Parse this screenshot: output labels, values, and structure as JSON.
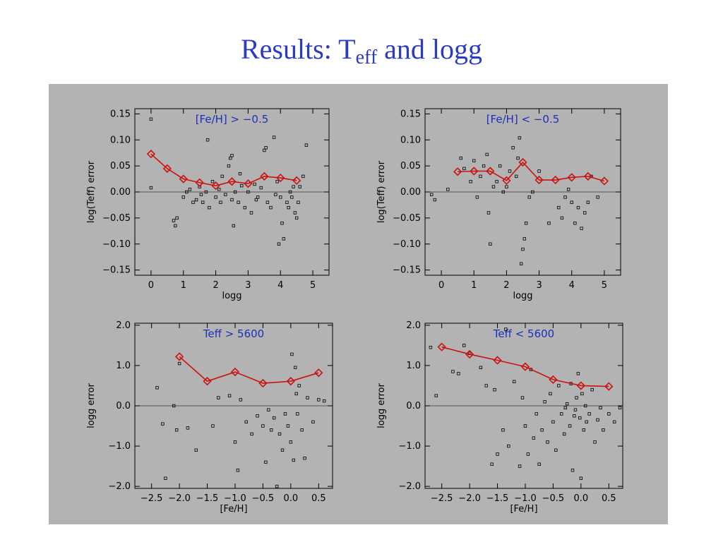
{
  "slide": {
    "title_main": "Results: T",
    "title_sub": "eff",
    "title_tail": " and logg"
  },
  "colors": {
    "title": "#2b3bc4",
    "panel_background": "#b3b3b3",
    "trend_line": "#cc1111",
    "points": "#000000",
    "panel_label": "#1f2fb8"
  },
  "chart_data": [
    {
      "id": "top-left",
      "type": "scatter",
      "title": "[Fe/H] > −0.5",
      "xlabel": "logg",
      "ylabel": "log(Teff) error",
      "xlim": [
        -0.5,
        5.5
      ],
      "ylim": [
        -0.16,
        0.16
      ],
      "xticks": [
        0,
        1,
        2,
        3,
        4,
        5
      ],
      "xtick_labels": [
        "0",
        "1",
        "2",
        "3",
        "4",
        "5"
      ],
      "yticks": [
        0.15,
        0.1,
        0.05,
        0.0,
        -0.05,
        -0.1,
        -0.15
      ],
      "ytick_labels": [
        "0.15",
        "0.10",
        "0.05",
        "0.00",
        "−0.05",
        "−0.10",
        "−0.15"
      ],
      "zero_line": 0,
      "trend": {
        "x": [
          0,
          0.5,
          1,
          1.5,
          2,
          2.5,
          3,
          3.5,
          4,
          4.5
        ],
        "y": [
          0.073,
          0.045,
          0.025,
          0.018,
          0.012,
          0.02,
          0.016,
          0.03,
          0.027,
          0.022
        ]
      },
      "points": [
        [
          0,
          0.14
        ],
        [
          0,
          0.008
        ],
        [
          0.7,
          -0.055
        ],
        [
          0.75,
          -0.065
        ],
        [
          0.8,
          -0.05
        ],
        [
          1.0,
          -0.01
        ],
        [
          1.1,
          0.0
        ],
        [
          1.2,
          0.005
        ],
        [
          1.3,
          -0.02
        ],
        [
          1.4,
          -0.015
        ],
        [
          1.5,
          0.01
        ],
        [
          1.6,
          -0.02
        ],
        [
          1.7,
          0.0
        ],
        [
          1.75,
          0.1
        ],
        [
          1.8,
          -0.03
        ],
        [
          1.9,
          0.02
        ],
        [
          2.0,
          -0.01
        ],
        [
          2.1,
          0.005
        ],
        [
          2.2,
          0.03
        ],
        [
          2.3,
          -0.005
        ],
        [
          2.4,
          0.05
        ],
        [
          2.45,
          0.065
        ],
        [
          2.5,
          0.07
        ],
        [
          2.5,
          -0.015
        ],
        [
          2.55,
          -0.065
        ],
        [
          2.6,
          0.0
        ],
        [
          2.7,
          -0.02
        ],
        [
          2.8,
          0.012
        ],
        [
          2.9,
          -0.03
        ],
        [
          3.0,
          0.0
        ],
        [
          3.1,
          -0.04
        ],
        [
          3.2,
          0.015
        ],
        [
          3.3,
          -0.01
        ],
        [
          3.4,
          0.008
        ],
        [
          3.5,
          0.08
        ],
        [
          3.55,
          0.085
        ],
        [
          3.6,
          -0.02
        ],
        [
          3.7,
          -0.03
        ],
        [
          3.8,
          0.105
        ],
        [
          3.85,
          -0.005
        ],
        [
          3.9,
          0.02
        ],
        [
          4.0,
          -0.01
        ],
        [
          4.1,
          -0.09
        ],
        [
          4.2,
          -0.02
        ],
        [
          4.25,
          -0.03
        ],
        [
          4.3,
          0.0
        ],
        [
          4.35,
          -0.01
        ],
        [
          4.4,
          0.01
        ],
        [
          4.45,
          -0.04
        ],
        [
          4.5,
          -0.05
        ],
        [
          4.55,
          -0.02
        ],
        [
          4.6,
          0.01
        ],
        [
          4.7,
          0.03
        ],
        [
          4.8,
          0.09
        ],
        [
          3.95,
          -0.1
        ],
        [
          4.05,
          -0.06
        ],
        [
          2.15,
          -0.02
        ],
        [
          1.55,
          -0.005
        ],
        [
          3.25,
          -0.015
        ],
        [
          2.75,
          0.035
        ]
      ]
    },
    {
      "id": "top-right",
      "type": "scatter",
      "title": "[Fe/H] < −0.5",
      "xlabel": "logg",
      "ylabel": "log(Teff) error",
      "xlim": [
        -0.5,
        5.5
      ],
      "ylim": [
        -0.16,
        0.16
      ],
      "xticks": [
        0,
        1,
        2,
        3,
        4,
        5
      ],
      "xtick_labels": [
        "0",
        "1",
        "2",
        "3",
        "4",
        "5"
      ],
      "yticks": [
        0.15,
        0.1,
        0.05,
        0.0,
        -0.05,
        -0.1,
        -0.15
      ],
      "ytick_labels": [
        "0.15",
        "0.10",
        "0.05",
        "0.00",
        "−0.05",
        "−0.10",
        "−0.15"
      ],
      "zero_line": 0,
      "trend": {
        "x": [
          0.5,
          1,
          1.5,
          2,
          2.5,
          3,
          3.5,
          4,
          4.5,
          5
        ],
        "y": [
          0.039,
          0.04,
          0.04,
          0.022,
          0.057,
          0.023,
          0.023,
          0.028,
          0.03,
          0.021
        ]
      },
      "points": [
        [
          -0.3,
          -0.005
        ],
        [
          -0.2,
          -0.015
        ],
        [
          0.2,
          0.005
        ],
        [
          0.6,
          0.065
        ],
        [
          0.7,
          0.045
        ],
        [
          0.9,
          0.02
        ],
        [
          1.0,
          0.06
        ],
        [
          1.1,
          -0.01
        ],
        [
          1.2,
          0.03
        ],
        [
          1.3,
          0.05
        ],
        [
          1.4,
          0.072
        ],
        [
          1.45,
          -0.04
        ],
        [
          1.5,
          -0.1
        ],
        [
          1.6,
          0.01
        ],
        [
          1.7,
          0.02
        ],
        [
          1.8,
          0.05
        ],
        [
          1.9,
          0.0
        ],
        [
          2.0,
          0.01
        ],
        [
          2.1,
          0.04
        ],
        [
          2.2,
          0.085
        ],
        [
          2.3,
          0.03
        ],
        [
          2.35,
          0.065
        ],
        [
          2.4,
          0.104
        ],
        [
          2.45,
          -0.138
        ],
        [
          2.5,
          -0.11
        ],
        [
          2.55,
          -0.09
        ],
        [
          2.6,
          -0.06
        ],
        [
          2.7,
          -0.01
        ],
        [
          2.8,
          0.0
        ],
        [
          3.0,
          0.04
        ],
        [
          3.3,
          -0.06
        ],
        [
          3.6,
          -0.03
        ],
        [
          3.7,
          -0.05
        ],
        [
          3.8,
          -0.01
        ],
        [
          3.9,
          0.005
        ],
        [
          4.0,
          -0.02
        ],
        [
          4.1,
          -0.06
        ],
        [
          4.2,
          -0.03
        ],
        [
          4.3,
          -0.07
        ],
        [
          4.4,
          -0.04
        ],
        [
          4.5,
          -0.02
        ],
        [
          4.6,
          0.03
        ],
        [
          4.8,
          -0.01
        ]
      ]
    },
    {
      "id": "bottom-left",
      "type": "scatter",
      "title": "Teff > 5600",
      "xlabel": "[Fe/H]",
      "ylabel": "logg error",
      "xlim": [
        -2.8,
        0.75
      ],
      "ylim": [
        -2.05,
        2.05
      ],
      "xticks": [
        -2.5,
        -2.0,
        -1.5,
        -1.0,
        -0.5,
        0.0,
        0.5
      ],
      "xtick_labels": [
        "−2.5",
        "−2.0",
        "−1.5",
        "−1.0",
        "−0.5",
        "0.0",
        "0.5"
      ],
      "yticks": [
        2.0,
        1.0,
        0.0,
        -1.0,
        -2.0
      ],
      "ytick_labels": [
        "2.0",
        "1.0",
        "0.0",
        "−1.0",
        "−2.0"
      ],
      "zero_line": 0,
      "trend": {
        "x": [
          -2.0,
          -1.5,
          -1.0,
          -0.5,
          0.0,
          0.5
        ],
        "y": [
          1.22,
          0.61,
          0.84,
          0.56,
          0.61,
          0.82
        ]
      },
      "points": [
        [
          -2.4,
          0.45
        ],
        [
          -2.3,
          -0.45
        ],
        [
          -2.25,
          -1.8
        ],
        [
          -2.1,
          0.0
        ],
        [
          -2.05,
          -0.6
        ],
        [
          -2.0,
          1.05
        ],
        [
          -1.85,
          -0.55
        ],
        [
          -1.7,
          -1.1
        ],
        [
          -1.4,
          -0.5
        ],
        [
          -1.3,
          0.2
        ],
        [
          -1.1,
          0.25
        ],
        [
          -1.0,
          -0.9
        ],
        [
          -0.95,
          -1.6
        ],
        [
          -0.9,
          0.15
        ],
        [
          -0.8,
          -0.4
        ],
        [
          -0.7,
          -0.7
        ],
        [
          -0.6,
          -0.25
        ],
        [
          -0.5,
          -0.5
        ],
        [
          -0.45,
          -1.4
        ],
        [
          -0.4,
          -0.1
        ],
        [
          -0.35,
          -0.6
        ],
        [
          -0.3,
          -0.3
        ],
        [
          -0.2,
          -0.7
        ],
        [
          -0.15,
          -1.1
        ],
        [
          -0.1,
          -0.2
        ],
        [
          -0.05,
          -0.5
        ],
        [
          0.0,
          -0.9
        ],
        [
          0.02,
          1.28
        ],
        [
          0.05,
          -1.35
        ],
        [
          0.08,
          0.95
        ],
        [
          0.1,
          0.3
        ],
        [
          0.12,
          -0.2
        ],
        [
          0.15,
          0.5
        ],
        [
          0.2,
          -0.6
        ],
        [
          0.25,
          -1.3
        ],
        [
          0.3,
          0.2
        ],
        [
          0.4,
          -0.4
        ],
        [
          0.5,
          0.15
        ],
        [
          0.6,
          0.12
        ],
        [
          -0.25,
          -2.0
        ]
      ]
    },
    {
      "id": "bottom-right",
      "type": "scatter",
      "title": "Teff < 5600",
      "xlabel": "[Fe/H]",
      "ylabel": "logg error",
      "xlim": [
        -2.8,
        0.75
      ],
      "ylim": [
        -2.05,
        2.05
      ],
      "xticks": [
        -2.5,
        -2.0,
        -1.5,
        -1.0,
        -0.5,
        0.0,
        0.5
      ],
      "xtick_labels": [
        "−2.5",
        "−2.0",
        "−1.5",
        "−1.0",
        "−0.5",
        "0.0",
        "0.5"
      ],
      "yticks": [
        2.0,
        1.0,
        0.0,
        -1.0,
        -2.0
      ],
      "ytick_labels": [
        "2.0",
        "1.0",
        "0.0",
        "−1.0",
        "−2.0"
      ],
      "zero_line": 0,
      "trend": {
        "x": [
          -2.5,
          -2.0,
          -1.5,
          -1.0,
          -0.5,
          0.0,
          0.5
        ],
        "y": [
          1.46,
          1.28,
          1.13,
          0.97,
          0.65,
          0.5,
          0.48
        ]
      },
      "points": [
        [
          -2.7,
          1.45
        ],
        [
          -2.6,
          0.25
        ],
        [
          -2.3,
          0.85
        ],
        [
          -2.2,
          0.8
        ],
        [
          -2.1,
          1.5
        ],
        [
          -2.0,
          1.3
        ],
        [
          -1.8,
          0.95
        ],
        [
          -1.7,
          0.5
        ],
        [
          -1.6,
          -1.45
        ],
        [
          -1.55,
          0.4
        ],
        [
          -1.5,
          -1.2
        ],
        [
          -1.4,
          -0.6
        ],
        [
          -1.35,
          1.9
        ],
        [
          -1.3,
          -1.0
        ],
        [
          -1.2,
          0.6
        ],
        [
          -1.1,
          -1.5
        ],
        [
          -1.05,
          0.2
        ],
        [
          -1.0,
          -0.5
        ],
        [
          -0.95,
          -1.2
        ],
        [
          -0.9,
          0.9
        ],
        [
          -0.85,
          -0.8
        ],
        [
          -0.8,
          -0.2
        ],
        [
          -0.75,
          -1.45
        ],
        [
          -0.7,
          -0.6
        ],
        [
          -0.65,
          0.1
        ],
        [
          -0.6,
          -0.9
        ],
        [
          -0.55,
          0.3
        ],
        [
          -0.5,
          -0.4
        ],
        [
          -0.45,
          -1.1
        ],
        [
          -0.4,
          0.5
        ],
        [
          -0.35,
          -0.2
        ],
        [
          -0.3,
          -0.7
        ],
        [
          -0.25,
          0.05
        ],
        [
          -0.2,
          -0.5
        ],
        [
          -0.15,
          -1.6
        ],
        [
          -0.1,
          -0.1
        ],
        [
          -0.05,
          0.8
        ],
        [
          -0.02,
          -0.3
        ],
        [
          0.0,
          -1.8
        ],
        [
          0.02,
          0.3
        ],
        [
          0.05,
          -0.6
        ],
        [
          0.08,
          0.0
        ],
        [
          0.1,
          -0.4
        ],
        [
          0.15,
          -0.2
        ],
        [
          0.2,
          0.4
        ],
        [
          0.25,
          -0.9
        ],
        [
          0.3,
          -0.35
        ],
        [
          0.35,
          -0.05
        ],
        [
          0.4,
          -0.6
        ],
        [
          0.5,
          -0.2
        ],
        [
          0.6,
          -0.4
        ],
        [
          0.7,
          -0.05
        ],
        [
          -0.12,
          -0.25
        ],
        [
          -0.08,
          0.2
        ],
        [
          -0.18,
          0.55
        ],
        [
          -0.28,
          -0.05
        ]
      ]
    }
  ]
}
